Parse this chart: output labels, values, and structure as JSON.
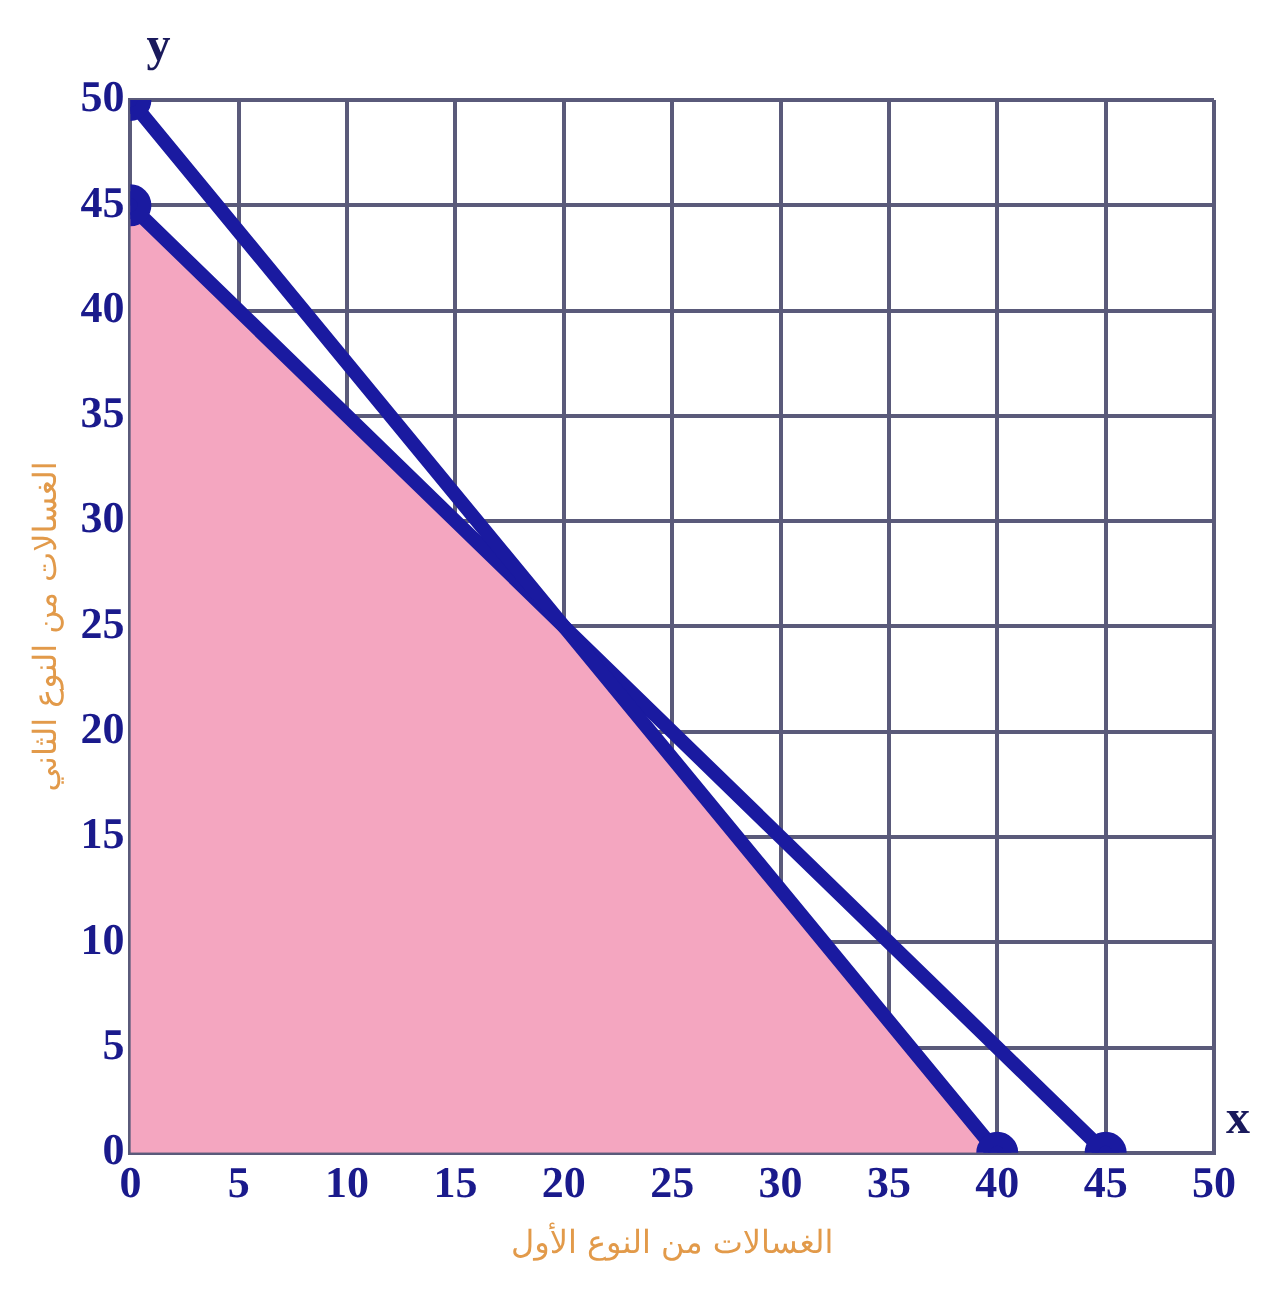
{
  "chart_data": {
    "type": "line",
    "xlabel": "الغسالات من النوع الأول",
    "ylabel": "الغسالات من النوع الثاني",
    "annotations": [
      "y",
      "x"
    ],
    "xlim": [
      0,
      50
    ],
    "xticks": [
      0,
      5,
      10,
      15,
      20,
      25,
      30,
      35,
      40,
      45,
      50
    ],
    "ylim": [
      0,
      50
    ],
    "yticks": [
      0,
      5,
      10,
      15,
      20,
      25,
      30,
      35,
      40,
      45,
      50
    ],
    "grid": true,
    "marker": "circle",
    "line_style": "solid",
    "series": [
      {
        "type": "area",
        "marker": "none",
        "color": "#f4a6c0",
        "x": [
          0,
          20,
          40
        ],
        "values": [
          45,
          25,
          0
        ]
      },
      {
        "type": "line",
        "color": "#1a1aa0",
        "x": [
          0,
          40
        ],
        "values": [
          50,
          0
        ]
      },
      {
        "type": "line",
        "color": "#1a1aa0",
        "x": [
          0,
          45
        ],
        "values": [
          45,
          0
        ]
      }
    ]
  }
}
